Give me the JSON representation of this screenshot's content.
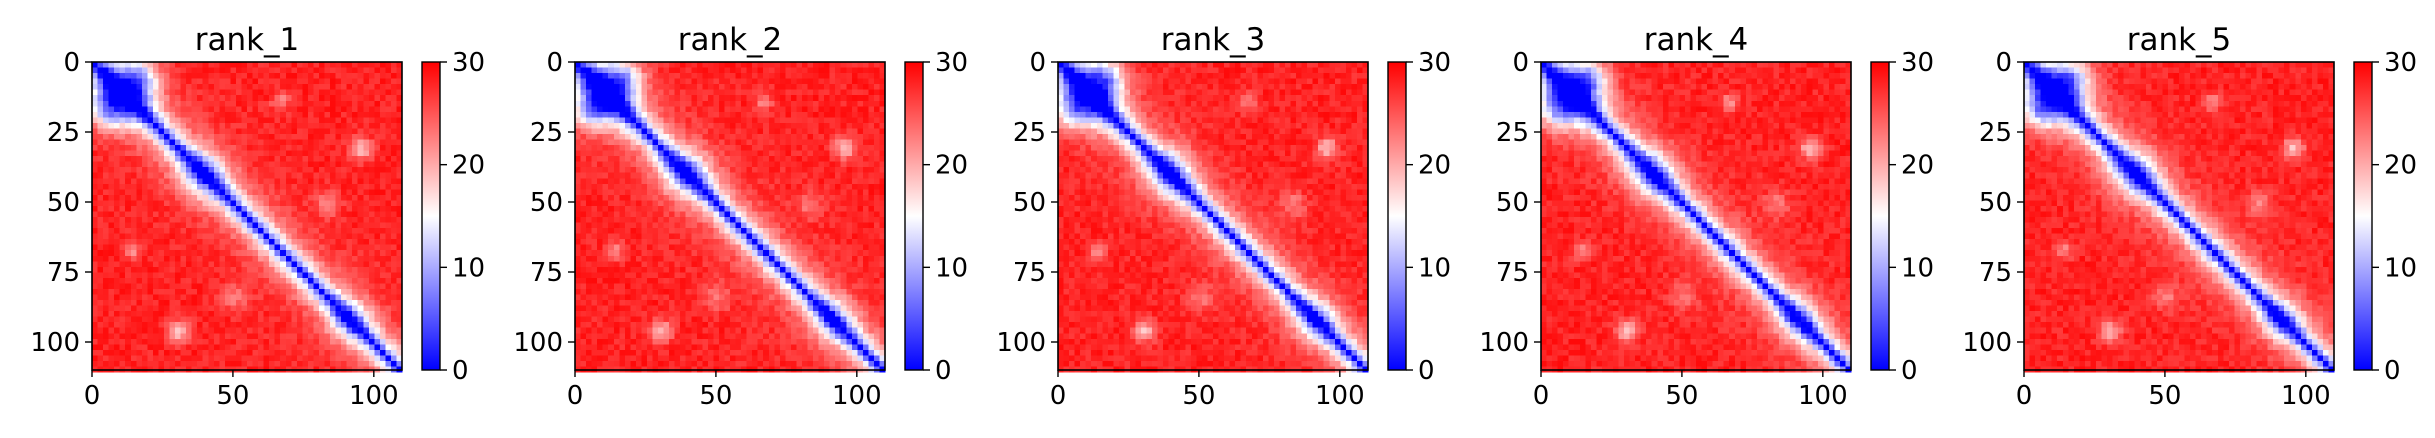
{
  "chart_data": [
    {
      "type": "heatmap",
      "title": "rank_1",
      "x_ticks": [
        "0",
        "50",
        "100"
      ],
      "y_ticks": [
        "0",
        "25",
        "50",
        "75",
        "100"
      ],
      "xlim": [
        0,
        110
      ],
      "ylim": [
        110,
        0
      ],
      "colorbar": {
        "ticks": [
          "0",
          "10",
          "20",
          "30"
        ],
        "range": [
          0,
          30
        ],
        "colors": [
          "#0000ff",
          "#ffffff",
          "#ff0000"
        ]
      }
    },
    {
      "type": "heatmap",
      "title": "rank_2",
      "x_ticks": [
        "0",
        "50",
        "100"
      ],
      "y_ticks": [
        "0",
        "25",
        "50",
        "75",
        "100"
      ],
      "xlim": [
        0,
        110
      ],
      "ylim": [
        110,
        0
      ],
      "colorbar": {
        "ticks": [
          "0",
          "10",
          "20",
          "30"
        ],
        "range": [
          0,
          30
        ],
        "colors": [
          "#0000ff",
          "#ffffff",
          "#ff0000"
        ]
      }
    },
    {
      "type": "heatmap",
      "title": "rank_3",
      "x_ticks": [
        "0",
        "50",
        "100"
      ],
      "y_ticks": [
        "0",
        "25",
        "50",
        "75",
        "100"
      ],
      "xlim": [
        0,
        110
      ],
      "ylim": [
        110,
        0
      ],
      "colorbar": {
        "ticks": [
          "0",
          "10",
          "20",
          "30"
        ],
        "range": [
          0,
          30
        ],
        "colors": [
          "#0000ff",
          "#ffffff",
          "#ff0000"
        ]
      }
    },
    {
      "type": "heatmap",
      "title": "rank_4",
      "x_ticks": [
        "0",
        "50",
        "100"
      ],
      "y_ticks": [
        "0",
        "25",
        "50",
        "75",
        "100"
      ],
      "xlim": [
        0,
        110
      ],
      "ylim": [
        110,
        0
      ],
      "colorbar": {
        "ticks": [
          "0",
          "10",
          "20",
          "30"
        ],
        "range": [
          0,
          30
        ],
        "colors": [
          "#0000ff",
          "#ffffff",
          "#ff0000"
        ]
      }
    },
    {
      "type": "heatmap",
      "title": "rank_5",
      "x_ticks": [
        "0",
        "50",
        "100"
      ],
      "y_ticks": [
        "0",
        "25",
        "50",
        "75",
        "100"
      ],
      "xlim": [
        0,
        110
      ],
      "ylim": [
        110,
        0
      ],
      "colorbar": {
        "ticks": [
          "0",
          "10",
          "20",
          "30"
        ],
        "range": [
          0,
          30
        ],
        "colors": [
          "#0000ff",
          "#ffffff",
          "#ff0000"
        ]
      }
    }
  ]
}
